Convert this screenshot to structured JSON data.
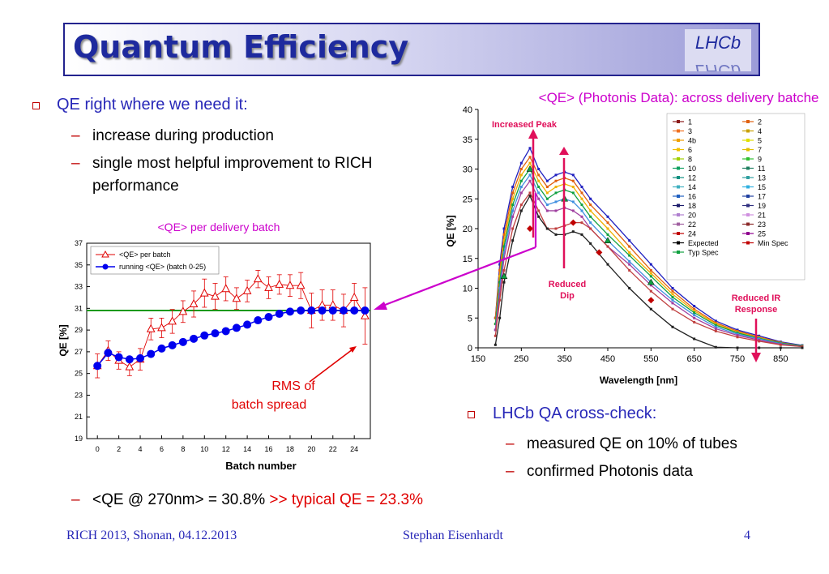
{
  "title": "Quantum Efficiency",
  "logo_text": "LHCb",
  "left_bullet": "QE right where we need it:",
  "left_subbullets": [
    "increase during production",
    "single most helpful improvement to RICH",
    "performance"
  ],
  "right_bullet": "LHCb QA cross-check:",
  "right_subbullets": [
    "measured QE on 10% of tubes",
    "confirmed Photonis data"
  ],
  "bottom_line": {
    "part1": "<QE @ 270nm> = 30.8% ",
    "part2": ">> typical QE = 23.3%"
  },
  "footer": {
    "left": "RICH 2013, Shonan, 04.12.2013",
    "center": "Stephan Eisenhardt",
    "right": "4"
  },
  "colors": {
    "title": "#1e2a9e",
    "bullet_blue": "#2828b8",
    "red": "#e00000",
    "magenta": "#cc00cc",
    "green": "#1a9a1a",
    "batch_blue": "#0000ee"
  },
  "chart_data": [
    {
      "type": "scatter",
      "title": "<QE> per delivery batch",
      "xlabel": "Batch number",
      "ylabel": "QE [%]",
      "xlim": [
        -1,
        25.5
      ],
      "ylim": [
        19,
        37
      ],
      "x_ticks": [
        "0",
        "2",
        "4",
        "6",
        "8",
        "10",
        "12",
        "14",
        "16",
        "18",
        "20",
        "22",
        "24"
      ],
      "y_ticks": [
        "19",
        "21",
        "23",
        "25",
        "27",
        "29",
        "31",
        "33",
        "35",
        "37"
      ],
      "legend_position": "top-left",
      "series": [
        {
          "name": "<QE> per batch",
          "x": [
            0,
            1,
            2,
            3,
            4,
            5,
            6,
            7,
            8,
            9,
            10,
            11,
            12,
            13,
            14,
            15,
            16,
            17,
            18,
            19,
            20,
            21,
            22,
            23,
            24,
            25
          ],
          "values": [
            25.7,
            27.1,
            26.2,
            25.6,
            26.3,
            29.1,
            29.2,
            29.8,
            30.7,
            31.4,
            32.4,
            32.1,
            32.8,
            31.9,
            32.6,
            33.7,
            32.9,
            33.2,
            33.1,
            33.1,
            30.8,
            31.3,
            31.3,
            30.8,
            32.0,
            30.3
          ],
          "error": [
            1.1,
            0.9,
            0.8,
            0.8,
            1.0,
            1.0,
            0.9,
            1.1,
            1.0,
            1.2,
            1.3,
            1.2,
            1.1,
            1.0,
            1.0,
            0.8,
            1.0,
            0.9,
            1.0,
            1.2,
            1.6,
            1.4,
            1.4,
            1.5,
            1.3,
            2.6
          ]
        },
        {
          "name": "running <QE> (batch 0-25)",
          "x": [
            0,
            1,
            2,
            3,
            4,
            5,
            6,
            7,
            8,
            9,
            10,
            11,
            12,
            13,
            14,
            15,
            16,
            17,
            18,
            19,
            20,
            21,
            22,
            23,
            24,
            25
          ],
          "values": [
            25.7,
            26.9,
            26.5,
            26.3,
            26.4,
            26.8,
            27.3,
            27.6,
            27.9,
            28.2,
            28.5,
            28.7,
            28.9,
            29.2,
            29.5,
            29.9,
            30.2,
            30.5,
            30.7,
            30.8,
            30.8,
            30.8,
            30.8,
            30.8,
            30.8,
            30.8
          ]
        }
      ],
      "reference_line": 30.8,
      "annotation": [
        "RMS of",
        "batch spread"
      ]
    },
    {
      "type": "line",
      "title": "<QE> (Photonis Data): across delivery batches",
      "xlabel": "Wavelength [nm]",
      "ylabel": "QE [%]",
      "xlim": [
        150,
        900
      ],
      "ylim": [
        0,
        40
      ],
      "x_ticks": [
        "150",
        "250",
        "350",
        "450",
        "550",
        "650",
        "750",
        "850"
      ],
      "y_ticks": [
        "0",
        "5",
        "10",
        "15",
        "20",
        "25",
        "30",
        "35",
        "40"
      ],
      "legend_position": "top-right",
      "legend": [
        "1",
        "2",
        "3",
        "4",
        "4b",
        "5",
        "6",
        "7",
        "8",
        "9",
        "10",
        "11",
        "12",
        "13",
        "14",
        "15",
        "16",
        "17",
        "18",
        "19",
        "20",
        "21",
        "22",
        "23",
        "24",
        "25",
        "Expected",
        "Min Spec",
        "Typ Spec"
      ],
      "x": [
        190,
        200,
        210,
        230,
        250,
        270,
        290,
        310,
        330,
        350,
        370,
        390,
        410,
        450,
        500,
        550,
        600,
        650,
        700,
        750,
        800,
        850,
        900
      ],
      "series": [
        {
          "name": "1",
          "values": [
            5,
            14,
            20,
            27,
            31,
            33.5,
            30,
            28,
            29,
            29.5,
            29,
            27,
            25,
            22,
            18,
            14,
            10,
            7,
            4.5,
            3,
            2,
            1,
            0.4
          ]
        },
        {
          "name": "5",
          "values": [
            5,
            13,
            19,
            26,
            30,
            32,
            29,
            27,
            28,
            28.5,
            28,
            26,
            24,
            21,
            17,
            13,
            9.5,
            6.5,
            4.2,
            2.8,
            1.8,
            0.9,
            0.3
          ]
        },
        {
          "name": "10",
          "values": [
            4,
            12,
            18,
            25,
            29,
            31,
            28,
            26,
            27,
            27.5,
            27,
            25,
            23,
            20,
            16,
            12.5,
            9,
            6.2,
            4,
            2.6,
            1.7,
            0.8,
            0.3
          ]
        },
        {
          "name": "15",
          "values": [
            4,
            11,
            17,
            24,
            28,
            30,
            27,
            25,
            26,
            26.5,
            26,
            24,
            22,
            19,
            15.5,
            12,
            8.5,
            5.9,
            3.8,
            2.5,
            1.6,
            0.8,
            0.3
          ]
        },
        {
          "name": "20",
          "values": [
            3,
            10,
            16,
            23,
            27,
            29,
            26,
            24,
            24.5,
            25,
            24.5,
            23,
            21,
            18,
            14.5,
            11,
            8,
            5.5,
            3.5,
            2.3,
            1.5,
            0.7,
            0.2
          ]
        },
        {
          "name": "25",
          "values": [
            3,
            9,
            15,
            22,
            26,
            28,
            25,
            23,
            23,
            23.5,
            23,
            22,
            20,
            17,
            14,
            10.5,
            7.5,
            5,
            3.2,
            2.1,
            1.3,
            0.6,
            0.2
          ]
        },
        {
          "name": "4b",
          "values": [
            2,
            8,
            13,
            20,
            24,
            26,
            23,
            20,
            20,
            20.5,
            21,
            21,
            20,
            17,
            13,
            9.5,
            6.5,
            4.3,
            2.8,
            1.8,
            1.1,
            0.5,
            0.2
          ]
        },
        {
          "name": "Expected",
          "values": [
            0.5,
            5,
            11,
            18,
            23,
            25.5,
            22,
            20,
            19,
            19,
            19.5,
            19,
            17.5,
            14,
            10,
            6.5,
            3.5,
            1.5,
            0.1,
            0,
            0,
            0,
            0
          ]
        }
      ],
      "min_spec": {
        "x": [
          270,
          370,
          430,
          550
        ],
        "values": [
          20,
          21,
          16,
          8
        ]
      },
      "typ_spec": {
        "x": [
          210,
          270,
          350,
          450,
          550
        ],
        "values": [
          12,
          30,
          25,
          18,
          11
        ]
      },
      "annotations": [
        "Increased Peak",
        "Reduced Dip",
        "Reduced IR Response"
      ]
    }
  ]
}
